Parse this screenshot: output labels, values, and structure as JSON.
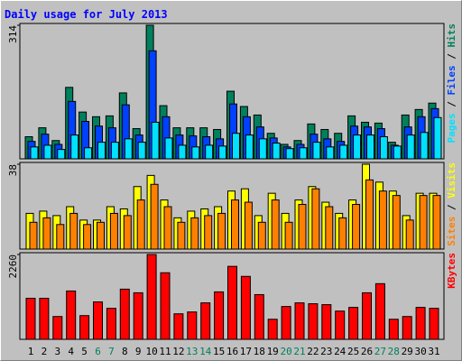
{
  "chart_data": [
    {
      "type": "bar",
      "title": "Daily usage for July 2013",
      "ylim": [
        0,
        314
      ],
      "yticks": [
        314
      ],
      "legend_separator": " / ",
      "series": [
        {
          "name": "Hits",
          "color": "#00805c",
          "values": [
            52,
            73,
            43,
            168,
            110,
            99,
            101,
            155,
            71,
            314,
            125,
            73,
            73,
            73,
            69,
            159,
            123,
            103,
            60,
            34,
            43,
            82,
            69,
            60,
            101,
            86,
            84,
            39,
            103,
            116,
            131
          ]
        },
        {
          "name": "Files",
          "color": "#0040ff",
          "values": [
            41,
            58,
            34,
            135,
            88,
            77,
            73,
            127,
            56,
            254,
            99,
            56,
            54,
            52,
            47,
            129,
            99,
            75,
            49,
            28,
            34,
            58,
            47,
            41,
            77,
            75,
            71,
            32,
            75,
            99,
            118
          ]
        },
        {
          "name": "Pages",
          "color": "#00e0ff",
          "values": [
            28,
            32,
            22,
            56,
            26,
            39,
            39,
            47,
            39,
            86,
            49,
            32,
            28,
            32,
            30,
            60,
            56,
            47,
            37,
            24,
            26,
            39,
            28,
            32,
            56,
            56,
            52,
            30,
            56,
            62,
            97
          ]
        }
      ]
    },
    {
      "type": "bar",
      "ylim": [
        0,
        38
      ],
      "yticks": [
        38
      ],
      "legend_separator": " / ",
      "series": [
        {
          "name": "Visits",
          "color": "#ffff00",
          "values": [
            16,
            17,
            15,
            19,
            13,
            13,
            19,
            18,
            28,
            33,
            22,
            14,
            17,
            18,
            19,
            26,
            27,
            15,
            25,
            16,
            22,
            28,
            21,
            16,
            22,
            38,
            30,
            26,
            15,
            25,
            25
          ]
        },
        {
          "name": "Sites",
          "color": "#ff8000",
          "values": [
            12,
            14,
            11,
            16,
            11,
            12,
            16,
            15,
            22,
            29,
            19,
            12,
            14,
            15,
            16,
            22,
            21,
            12,
            22,
            12,
            20,
            27,
            19,
            14,
            20,
            31,
            26,
            24,
            13,
            24,
            24
          ]
        }
      ]
    },
    {
      "type": "bar",
      "ylim": [
        0,
        2260
      ],
      "yticks": [
        2260
      ],
      "series": [
        {
          "name": "KBytes",
          "color": "#ff0000",
          "values": [
            1094,
            1094,
            608,
            1288,
            632,
            997,
            826,
            1337,
            1240,
            2260,
            1774,
            680,
            729,
            972,
            1264,
            1944,
            1677,
            1191,
            535,
            875,
            972,
            948,
            924,
            753,
            851,
            1240,
            1483,
            535,
            608,
            851,
            826
          ]
        }
      ],
      "categories": [
        "1",
        "2",
        "3",
        "4",
        "5",
        "6",
        "7",
        "8",
        "9",
        "10",
        "11",
        "12",
        "13",
        "14",
        "15",
        "16",
        "17",
        "18",
        "19",
        "20",
        "21",
        "22",
        "23",
        "24",
        "25",
        "26",
        "27",
        "28",
        "29",
        "30",
        "31"
      ],
      "category_colors": [
        "#000000",
        "#000000",
        "#000000",
        "#000000",
        "#000000",
        "#00805c",
        "#00805c",
        "#000000",
        "#000000",
        "#000000",
        "#000000",
        "#000000",
        "#00805c",
        "#00805c",
        "#000000",
        "#000000",
        "#000000",
        "#000000",
        "#000000",
        "#00805c",
        "#00805c",
        "#000000",
        "#000000",
        "#000000",
        "#000000",
        "#000000",
        "#00805c",
        "#00805c",
        "#000000",
        "#000000",
        "#000000"
      ]
    }
  ]
}
